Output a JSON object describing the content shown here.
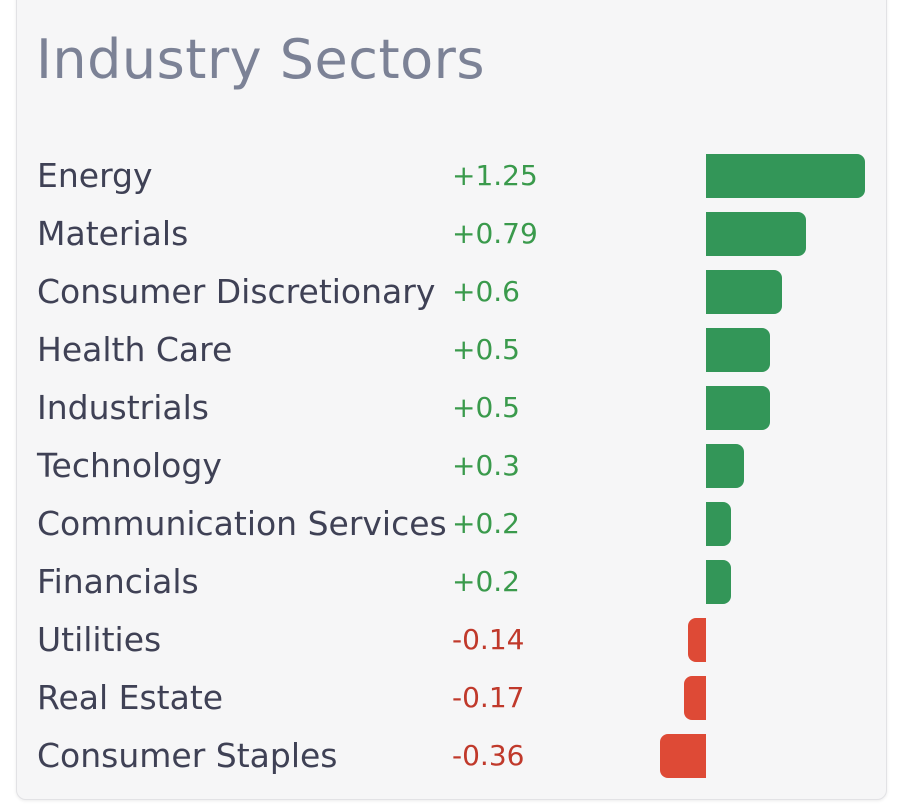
{
  "colors": {
    "positive": "#339658",
    "negative": "#de4a36",
    "positive_text": "#3a9a4c",
    "negative_text": "#c0392b"
  },
  "chart_data": {
    "type": "bar",
    "orientation": "horizontal",
    "title": "Industry Sectors",
    "categories": [
      "Energy",
      "Materials",
      "Consumer Discretionary",
      "Health Care",
      "Industrials",
      "Technology",
      "Communication Services",
      "Financials",
      "Utilities",
      "Real Estate",
      "Consumer Staples"
    ],
    "values": [
      1.25,
      0.79,
      0.6,
      0.5,
      0.5,
      0.3,
      0.2,
      0.2,
      -0.14,
      -0.17,
      -0.36
    ],
    "labels": [
      "+1.25",
      "+0.79",
      "+0.6",
      "+0.5",
      "+0.5",
      "+0.3",
      "+0.2",
      "+0.2",
      "-0.14",
      "-0.17",
      "-0.36"
    ]
  }
}
